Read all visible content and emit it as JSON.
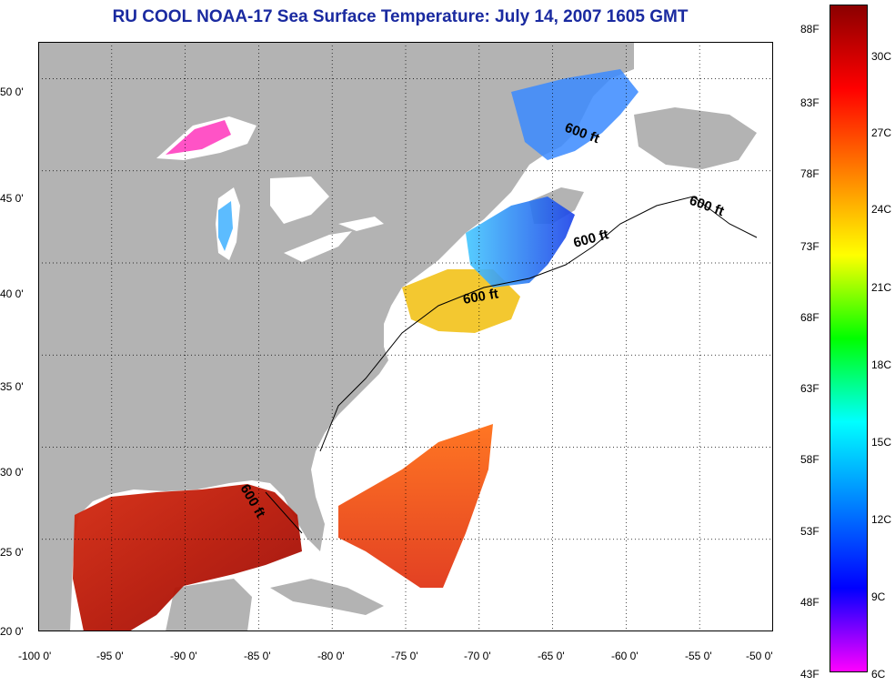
{
  "title": "RU COOL  NOAA-17  Sea Surface Temperature:  July 14, 2007 1605 GMT",
  "map": {
    "lon_range": [
      -100,
      -50
    ],
    "lat_range": [
      20,
      52
    ],
    "x_ticks": [
      "-100 0'",
      "-95 0'",
      "-90 0'",
      "-85 0'",
      "-80 0'",
      "-75 0'",
      "-70 0'",
      "-65 0'",
      "-60 0'",
      "-55 0'",
      "-50 0'"
    ],
    "y_ticks": [
      "50 0'",
      "45 0'",
      "40 0'",
      "35 0'",
      "30 0'",
      "25 0'",
      "20 0'"
    ],
    "grid": "dotted",
    "land_color": "#b3b3b3",
    "no_data_color": "#ffffff",
    "contour_labels": [
      "600 ft",
      "600 ft",
      "600 ft",
      "600 ft",
      "600 ft"
    ]
  },
  "colorbar": {
    "fahrenheit_labels": [
      "88F",
      "83F",
      "78F",
      "73F",
      "68F",
      "63F",
      "58F",
      "53F",
      "48F",
      "43F"
    ],
    "celsius_labels": [
      "30C",
      "27C",
      "24C",
      "21C",
      "18C",
      "15C",
      "12C",
      "9C",
      "6C"
    ],
    "colors": [
      "#8b0000",
      "#ff0000",
      "#ff7f00",
      "#ffff00",
      "#00ff00",
      "#00ffff",
      "#0080ff",
      "#0000ff",
      "#ff00ff"
    ]
  }
}
